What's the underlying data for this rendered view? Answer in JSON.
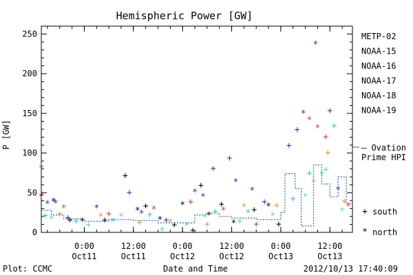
{
  "plot_credit": "Plot: CCMC",
  "timestamp": "2012/10/13 17:40:09",
  "chart_data": {
    "type": "scatter",
    "title": "Hemispheric Power [GW]",
    "ylabel": "P [GW]",
    "xlabel": "Date and Time",
    "xlim": [
      "2012-10-10T13:30",
      "2012-10-13T17:30"
    ],
    "ylim": [
      0,
      260
    ],
    "yticks": [
      0,
      50,
      100,
      150,
      200,
      250
    ],
    "yticks_minor_step": 10,
    "xticks": [
      {
        "time": "2012-10-11T00:00",
        "label1": "0:00",
        "label2": "Oct11"
      },
      {
        "time": "2012-10-11T12:00",
        "label1": "12:00",
        "label2": "Oct11"
      },
      {
        "time": "2012-10-12T00:00",
        "label1": "0:00",
        "label2": "Oct12"
      },
      {
        "time": "2012-10-12T12:00",
        "label1": "12:00",
        "label2": "Oct12"
      },
      {
        "time": "2012-10-13T00:00",
        "label1": "0:00",
        "label2": "Oct13"
      },
      {
        "time": "2012-10-13T12:00",
        "label1": "12:00",
        "label2": "Oct13"
      }
    ],
    "xticks_minor_hours": 3,
    "grid": false,
    "legend_position": "right",
    "series": [
      {
        "name": "METP-02",
        "color": "#000000",
        "points": [
          {
            "t": "2012-10-10T13:30",
            "v": 44,
            "m": "*"
          },
          {
            "t": "2012-10-10T16:30",
            "v": 38,
            "m": "*"
          },
          {
            "t": "2012-10-10T20:30",
            "v": 15,
            "m": "+"
          },
          {
            "t": "2012-10-10T23:30",
            "v": 13,
            "m": "*"
          },
          {
            "t": "2012-10-11T05:00",
            "v": 15,
            "m": "+"
          },
          {
            "t": "2012-10-11T10:00",
            "v": 71,
            "m": "+"
          },
          {
            "t": "2012-10-11T13:00",
            "v": 27,
            "m": "*"
          },
          {
            "t": "2012-10-11T15:00",
            "v": 33,
            "m": "+"
          },
          {
            "t": "2012-10-11T18:30",
            "v": 15,
            "m": "*"
          },
          {
            "t": "2012-10-11T22:00",
            "v": 9,
            "m": "+"
          },
          {
            "t": "2012-10-12T00:00",
            "v": 34,
            "m": "*"
          },
          {
            "t": "2012-10-12T02:30",
            "v": 2,
            "m": "+"
          },
          {
            "t": "2012-10-12T04:30",
            "v": 59,
            "m": "+"
          },
          {
            "t": "2012-10-12T06:30",
            "v": 21,
            "m": "*"
          },
          {
            "t": "2012-10-12T09:30",
            "v": 35,
            "m": "+"
          },
          {
            "t": "2012-10-12T12:30",
            "v": 11,
            "m": "*"
          },
          {
            "t": "2012-10-12T17:30",
            "v": 28,
            "m": "+"
          },
          {
            "t": "2012-10-12T21:00",
            "v": 32,
            "m": "*"
          },
          {
            "t": "2012-10-12T23:30",
            "v": 10,
            "m": "+"
          }
        ]
      },
      {
        "name": "NOAA-15",
        "color": "#1c2fd0",
        "points": [
          {
            "t": "2012-10-10T13:30",
            "v": 80,
            "m": "*"
          },
          {
            "t": "2012-10-10T15:00",
            "v": 35,
            "m": "*"
          },
          {
            "t": "2012-10-10T17:00",
            "v": 36,
            "m": "*"
          },
          {
            "t": "2012-10-10T20:00",
            "v": 18,
            "m": "+"
          },
          {
            "t": "2012-10-11T03:00",
            "v": 30,
            "m": "*"
          },
          {
            "t": "2012-10-11T11:00",
            "v": 50,
            "m": "+"
          },
          {
            "t": "2012-10-11T14:00",
            "v": 23,
            "m": "*"
          },
          {
            "t": "2012-10-11T20:00",
            "v": 15,
            "m": "+"
          },
          {
            "t": "2012-10-12T03:00",
            "v": 50,
            "m": "*"
          },
          {
            "t": "2012-10-12T05:00",
            "v": 44,
            "m": "*"
          },
          {
            "t": "2012-10-12T07:30",
            "v": 80,
            "m": "+"
          },
          {
            "t": "2012-10-12T11:30",
            "v": 93,
            "m": "+"
          },
          {
            "t": "2012-10-12T13:00",
            "v": 63,
            "m": "*"
          },
          {
            "t": "2012-10-12T17:00",
            "v": 52,
            "m": "*"
          },
          {
            "t": "2012-10-12T20:00",
            "v": 38,
            "m": "+"
          },
          {
            "t": "2012-10-13T02:00",
            "v": 109,
            "m": "+"
          },
          {
            "t": "2012-10-13T04:00",
            "v": 129,
            "m": "+"
          },
          {
            "t": "2012-10-13T05:30",
            "v": 149,
            "m": "*"
          },
          {
            "t": "2012-10-13T08:30",
            "v": 236,
            "m": "*"
          },
          {
            "t": "2012-10-13T12:00",
            "v": 153,
            "m": "+"
          },
          {
            "t": "2012-10-13T14:00",
            "v": 53,
            "m": "*"
          }
        ]
      },
      {
        "name": "NOAA-16",
        "color": "#22c3e6",
        "points": [
          {
            "t": "2012-10-10T14:30",
            "v": 21,
            "m": "+"
          },
          {
            "t": "2012-10-10T22:00",
            "v": 14,
            "m": "+"
          },
          {
            "t": "2012-10-11T07:00",
            "v": 13,
            "m": "*"
          },
          {
            "t": "2012-10-11T16:00",
            "v": 22,
            "m": "+"
          },
          {
            "t": "2012-10-12T01:00",
            "v": 8,
            "m": "*"
          },
          {
            "t": "2012-10-12T08:00",
            "v": 26,
            "m": "+"
          },
          {
            "t": "2012-10-12T16:00",
            "v": 24,
            "m": "*"
          },
          {
            "t": "2012-10-13T03:00",
            "v": 42,
            "m": "+"
          },
          {
            "t": "2012-10-13T07:00",
            "v": 74,
            "m": "+"
          },
          {
            "t": "2012-10-13T10:00",
            "v": 72,
            "m": "*"
          },
          {
            "t": "2012-10-13T13:00",
            "v": 134,
            "m": "+"
          }
        ]
      },
      {
        "name": "NOAA-17",
        "color": "#44ef82",
        "points": [
          {
            "t": "2012-10-10T16:00",
            "v": 16,
            "m": "*"
          },
          {
            "t": "2012-10-11T01:00",
            "v": 9,
            "m": "+"
          },
          {
            "t": "2012-10-11T09:00",
            "v": 19,
            "m": "*"
          },
          {
            "t": "2012-10-11T19:00",
            "v": 4,
            "m": "+"
          },
          {
            "t": "2012-10-12T05:30",
            "v": 18,
            "m": "*"
          },
          {
            "t": "2012-10-12T14:00",
            "v": 14,
            "m": "+"
          },
          {
            "t": "2012-10-12T22:00",
            "v": 20,
            "m": "*"
          },
          {
            "t": "2012-10-13T06:00",
            "v": 44,
            "m": "*"
          },
          {
            "t": "2012-10-13T11:00",
            "v": 79,
            "m": "+"
          },
          {
            "t": "2012-10-13T15:00",
            "v": 26,
            "m": "*"
          }
        ]
      },
      {
        "name": "NOAA-18",
        "color": "#f0901a",
        "points": [
          {
            "t": "2012-10-10T18:00",
            "v": 23,
            "m": "+"
          },
          {
            "t": "2012-10-11T04:00",
            "v": 19,
            "m": "*"
          },
          {
            "t": "2012-10-11T13:30",
            "v": 12,
            "m": "+"
          },
          {
            "t": "2012-10-11T21:00",
            "v": 12,
            "m": "*"
          },
          {
            "t": "2012-10-12T06:00",
            "v": 10,
            "m": "+"
          },
          {
            "t": "2012-10-12T15:00",
            "v": 31,
            "m": "*"
          },
          {
            "t": "2012-10-12T23:00",
            "v": 34,
            "m": "+"
          },
          {
            "t": "2012-10-13T08:00",
            "v": 62,
            "m": "*"
          },
          {
            "t": "2012-10-13T11:30",
            "v": 100,
            "m": "+"
          },
          {
            "t": "2012-10-13T15:30",
            "v": 39,
            "m": "+"
          }
        ]
      },
      {
        "name": "NOAA-19",
        "color": "#e0351e",
        "points": [
          {
            "t": "2012-10-10T13:45",
            "v": 46,
            "m": "*"
          },
          {
            "t": "2012-10-10T19:00",
            "v": 30,
            "m": "*"
          },
          {
            "t": "2012-10-11T06:00",
            "v": 23,
            "m": "+"
          },
          {
            "t": "2012-10-11T17:00",
            "v": 28,
            "m": "*"
          },
          {
            "t": "2012-10-12T02:00",
            "v": 38,
            "m": "+"
          },
          {
            "t": "2012-10-12T10:00",
            "v": 27,
            "m": "*"
          },
          {
            "t": "2012-10-12T18:00",
            "v": 10,
            "m": "+"
          },
          {
            "t": "2012-10-13T07:00",
            "v": 141,
            "m": "*"
          },
          {
            "t": "2012-10-13T09:00",
            "v": 131,
            "m": "*"
          },
          {
            "t": "2012-10-13T11:00",
            "v": 120,
            "m": "+"
          },
          {
            "t": "2012-10-13T16:30",
            "v": 32,
            "m": "*"
          }
        ]
      }
    ],
    "ovation": {
      "name": "Ovation Prime HPI",
      "legend_lines": [
        "— Ovation",
        "Prime HPI"
      ],
      "color": "#1e5fb8",
      "points": [
        {
          "t": "2012-10-10T13:30",
          "v": 28
        },
        {
          "t": "2012-10-10T16:00",
          "v": 22
        },
        {
          "t": "2012-10-10T19:00",
          "v": 17
        },
        {
          "t": "2012-10-11T00:00",
          "v": 14
        },
        {
          "t": "2012-10-11T06:00",
          "v": 16
        },
        {
          "t": "2012-10-11T12:00",
          "v": 15
        },
        {
          "t": "2012-10-11T18:00",
          "v": 12
        },
        {
          "t": "2012-10-12T00:00",
          "v": 12
        },
        {
          "t": "2012-10-12T03:00",
          "v": 22
        },
        {
          "t": "2012-10-12T06:00",
          "v": 24
        },
        {
          "t": "2012-10-12T09:00",
          "v": 20
        },
        {
          "t": "2012-10-12T12:00",
          "v": 18
        },
        {
          "t": "2012-10-12T18:00",
          "v": 16
        },
        {
          "t": "2012-10-13T00:00",
          "v": 25
        },
        {
          "t": "2012-10-13T01:00",
          "v": 74
        },
        {
          "t": "2012-10-13T03:30",
          "v": 55
        },
        {
          "t": "2012-10-13T05:00",
          "v": 8
        },
        {
          "t": "2012-10-13T08:00",
          "v": 85
        },
        {
          "t": "2012-10-13T10:00",
          "v": 61
        },
        {
          "t": "2012-10-13T12:00",
          "v": 45
        },
        {
          "t": "2012-10-13T14:00",
          "v": 70
        },
        {
          "t": "2012-10-13T16:00",
          "v": 36
        },
        {
          "t": "2012-10-13T17:30",
          "v": 60
        }
      ]
    },
    "marker_legend": [
      {
        "symbol": "+",
        "label": "south"
      },
      {
        "symbol": "*",
        "label": "north"
      }
    ]
  }
}
